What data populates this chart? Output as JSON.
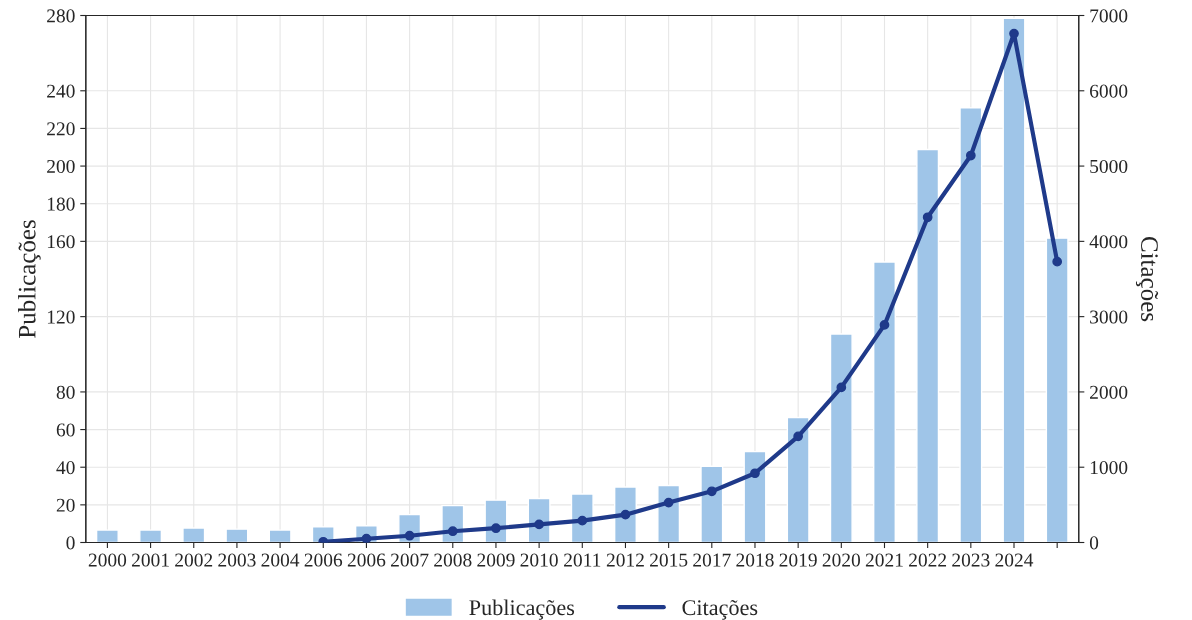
{
  "chart_data": {
    "type": "bar",
    "categories": [
      "2000",
      "2001",
      "2002",
      "2003",
      "2004",
      "2006",
      "2006",
      "2007",
      "2008",
      "2009",
      "2010",
      "2011",
      "2012",
      "2015",
      "2017",
      "2018",
      "2019",
      "2020",
      "2021",
      "2022",
      "2023",
      "2024",
      null
    ],
    "series": [
      {
        "name": "Publicações",
        "color": "#9fc5e8",
        "values": [
          6.6,
          6.6,
          7.7,
          7.1,
          6.6,
          8.3,
          8.9,
          14.8,
          19.6,
          22.5,
          23.4,
          25.8,
          29.5,
          30.3,
          40.5,
          48.3,
          66.4,
          110.8,
          149,
          208.8,
          230.9,
          278.5,
          161.7
        ]
      },
      {
        "name": "Citações",
        "type": "line",
        "axis": "y2",
        "color": "#1f3a8a",
        "values": [
          null,
          null,
          null,
          null,
          null,
          10,
          50,
          90,
          150,
          190,
          240,
          290,
          370,
          530,
          680,
          920,
          1410,
          2060,
          2890,
          4320,
          5140,
          6760,
          3730
        ]
      }
    ],
    "ylabel": "Publicações",
    "y2label": "Citações",
    "ylim": [
      0,
      280
    ],
    "yticks": [
      0,
      20,
      40,
      60,
      80,
      120,
      160,
      180,
      200,
      220,
      240,
      280
    ],
    "y2lim": [
      0,
      7000
    ],
    "y2ticks": [
      0,
      1000,
      2000,
      3000,
      4000,
      5000,
      6000,
      7000
    ],
    "grid": true,
    "legend": "bottom",
    "marker": "circle",
    "line_style": "solid"
  }
}
